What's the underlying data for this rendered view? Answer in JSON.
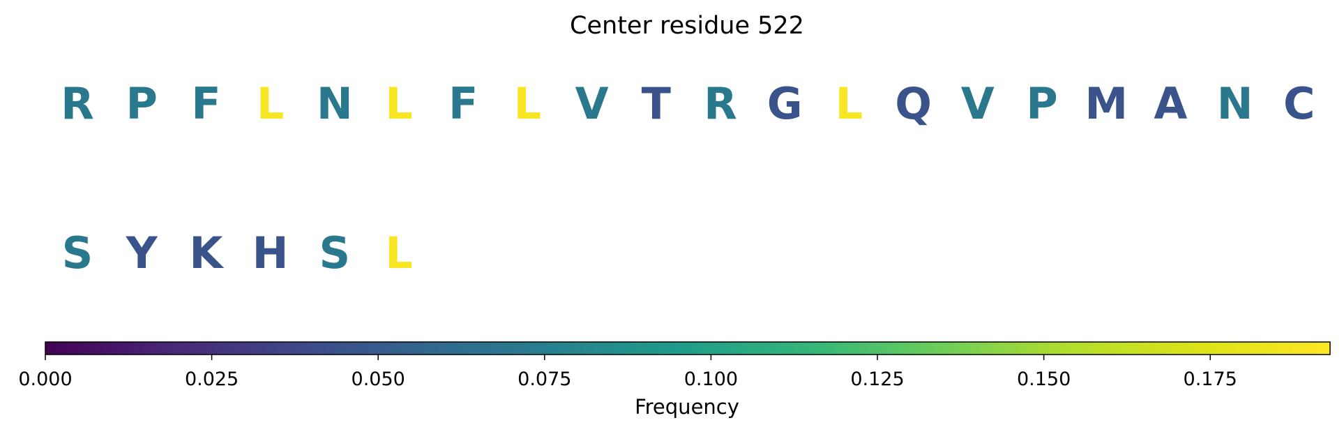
{
  "chart_data": {
    "type": "sequence-colorbar",
    "title": "Center residue 522",
    "residues": [
      {
        "letter": "R",
        "value": 0.07
      },
      {
        "letter": "P",
        "value": 0.07
      },
      {
        "letter": "F",
        "value": 0.07
      },
      {
        "letter": "L",
        "value": 0.19
      },
      {
        "letter": "N",
        "value": 0.07
      },
      {
        "letter": "L",
        "value": 0.19
      },
      {
        "letter": "F",
        "value": 0.07
      },
      {
        "letter": "L",
        "value": 0.19
      },
      {
        "letter": "V",
        "value": 0.07
      },
      {
        "letter": "T",
        "value": 0.045
      },
      {
        "letter": "R",
        "value": 0.07
      },
      {
        "letter": "G",
        "value": 0.045
      },
      {
        "letter": "L",
        "value": 0.19
      },
      {
        "letter": "Q",
        "value": 0.045
      },
      {
        "letter": "V",
        "value": 0.07
      },
      {
        "letter": "P",
        "value": 0.07
      },
      {
        "letter": "M",
        "value": 0.045
      },
      {
        "letter": "A",
        "value": 0.045
      },
      {
        "letter": "N",
        "value": 0.07
      },
      {
        "letter": "C",
        "value": 0.045
      },
      {
        "letter": "S",
        "value": 0.07
      },
      {
        "letter": "Y",
        "value": 0.045
      },
      {
        "letter": "K",
        "value": 0.045
      },
      {
        "letter": "H",
        "value": 0.045
      },
      {
        "letter": "S",
        "value": 0.07
      },
      {
        "letter": "L",
        "value": 0.19
      }
    ],
    "colorbar": {
      "label": "Frequency",
      "colormap": "viridis",
      "range": [
        0.0,
        0.193
      ],
      "ticks": [
        0.0,
        0.025,
        0.05,
        0.075,
        0.1,
        0.125,
        0.15,
        0.175
      ],
      "tick_labels": [
        "0.000",
        "0.025",
        "0.050",
        "0.075",
        "0.100",
        "0.125",
        "0.150",
        "0.175"
      ]
    }
  }
}
